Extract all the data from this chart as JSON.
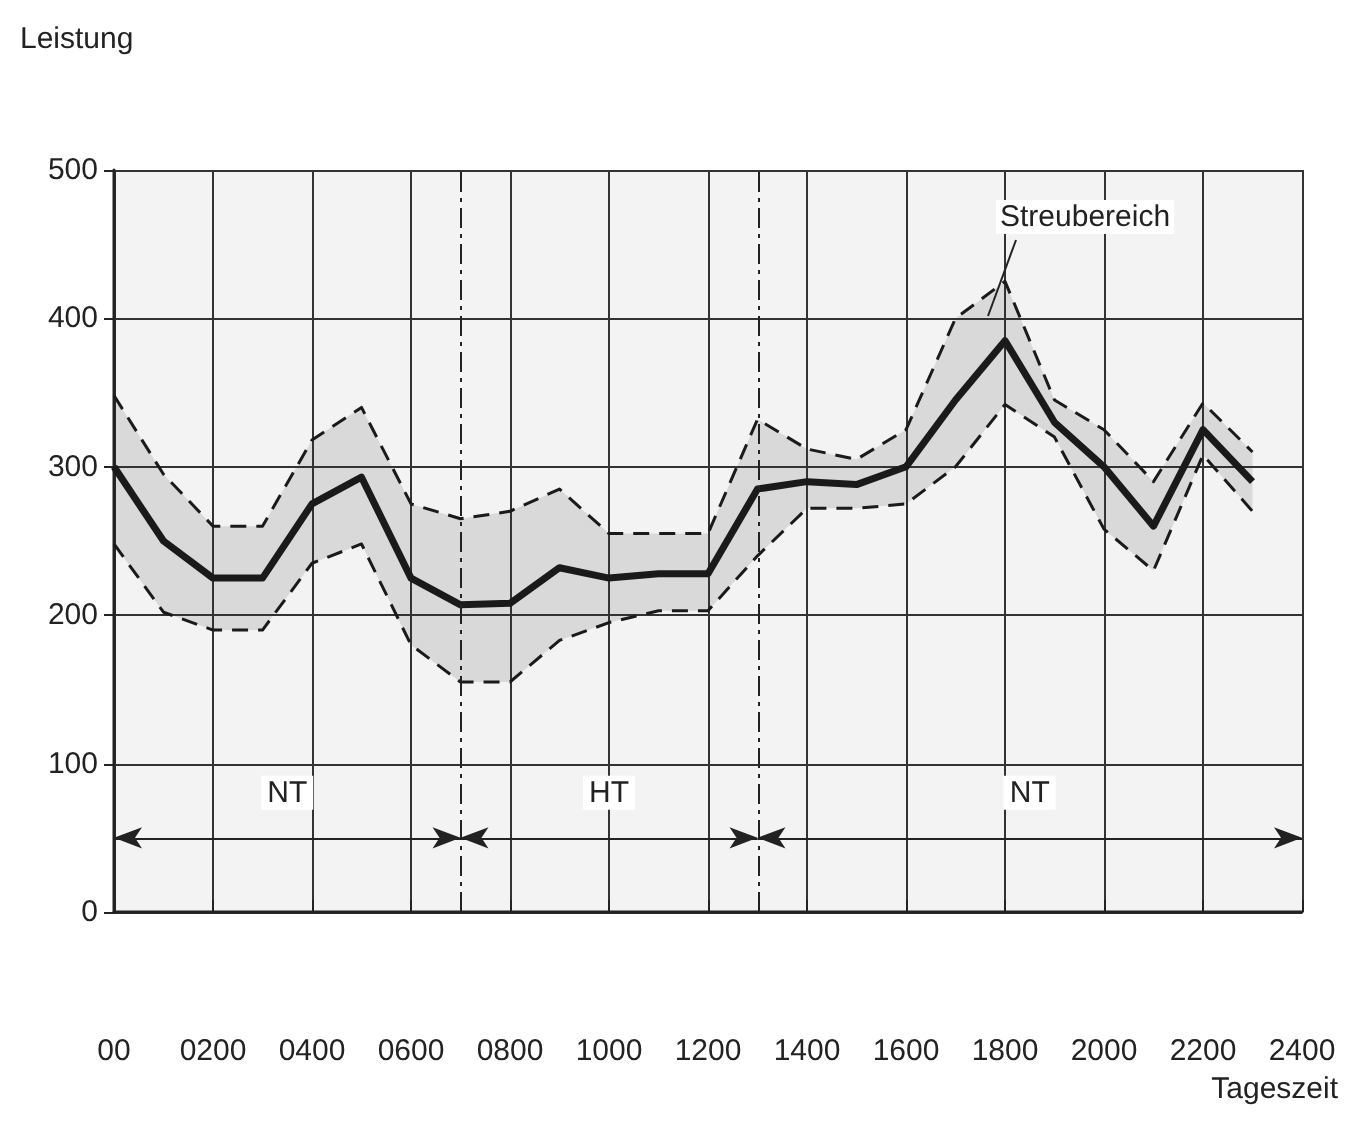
{
  "chart_data": {
    "type": "line",
    "ylabel": "Leistung",
    "xlabel": "Tageszeit",
    "x": [
      0,
      100,
      200,
      300,
      400,
      500,
      600,
      700,
      800,
      900,
      1000,
      1100,
      1200,
      1300,
      1400,
      1500,
      1600,
      1700,
      1800,
      1900,
      2000,
      2100,
      2200,
      2300
    ],
    "series": [
      {
        "color": "#1a1a1a",
        "line_style": "solid",
        "values": [
          300,
          250,
          225,
          225,
          275,
          293,
          225,
          207,
          208,
          232,
          225,
          228,
          228,
          285,
          290,
          288,
          300,
          345,
          385,
          330,
          300,
          260,
          325,
          290
        ],
        "upper": [
          348,
          295,
          260,
          260,
          318,
          340,
          275,
          265,
          270,
          285,
          255,
          255,
          255,
          332,
          312,
          305,
          325,
          400,
          425,
          345,
          325,
          290,
          343,
          310
        ],
        "lower": [
          248,
          202,
          190,
          190,
          235,
          248,
          180,
          155,
          155,
          183,
          195,
          203,
          203,
          240,
          272,
          272,
          275,
          300,
          342,
          320,
          258,
          230,
          308,
          270
        ]
      },
      {
        "color": "#1a1a1a",
        "line_style": "dashed",
        "values": [
          348,
          295,
          260,
          260,
          318,
          340,
          275,
          265,
          270,
          285,
          255,
          255,
          255,
          332,
          312,
          305,
          325,
          400,
          425,
          345,
          325,
          290,
          343,
          310
        ]
      },
      {
        "color": "#1a1a1a",
        "line_style": "dashed",
        "values": [
          248,
          202,
          190,
          190,
          235,
          248,
          180,
          155,
          155,
          183,
          195,
          203,
          203,
          240,
          272,
          272,
          275,
          300,
          342,
          320,
          258,
          230,
          308,
          270
        ]
      }
    ],
    "xlim": [
      0,
      2400
    ],
    "xticks": [
      {
        "value": 0,
        "label": "00"
      },
      {
        "value": 200,
        "label": "0200"
      },
      {
        "value": 400,
        "label": "0400"
      },
      {
        "value": 600,
        "label": "0600"
      },
      {
        "value": 800,
        "label": "0800"
      },
      {
        "value": 1000,
        "label": "1000"
      },
      {
        "value": 1200,
        "label": "1200"
      },
      {
        "value": 1400,
        "label": "1400"
      },
      {
        "value": 1600,
        "label": "1600"
      },
      {
        "value": 1800,
        "label": "1800"
      },
      {
        "value": 2000,
        "label": "2000"
      },
      {
        "value": 2200,
        "label": "2200"
      },
      {
        "value": 2400,
        "label": "2400"
      }
    ],
    "ylim": [
      0,
      500
    ],
    "yticks": [
      0,
      100,
      200,
      300,
      400,
      500
    ],
    "grid": true,
    "marker": "none",
    "bands": [
      {
        "axis": "x",
        "from": 0,
        "to": 700,
        "label": "NT",
        "color": "#f3f3f3"
      },
      {
        "axis": "x",
        "from": 700,
        "to": 1300,
        "label": "HT",
        "color": "#f3f3f3"
      },
      {
        "axis": "x",
        "from": 1300,
        "to": 2400,
        "label": "NT",
        "color": "#f3f3f3"
      }
    ],
    "ref_lines": [
      {
        "axis": "x",
        "value": 700,
        "line_style": "dashed"
      },
      {
        "axis": "x",
        "value": 1300,
        "line_style": "dashed"
      }
    ],
    "annotations": [
      "Streubereich"
    ]
  }
}
